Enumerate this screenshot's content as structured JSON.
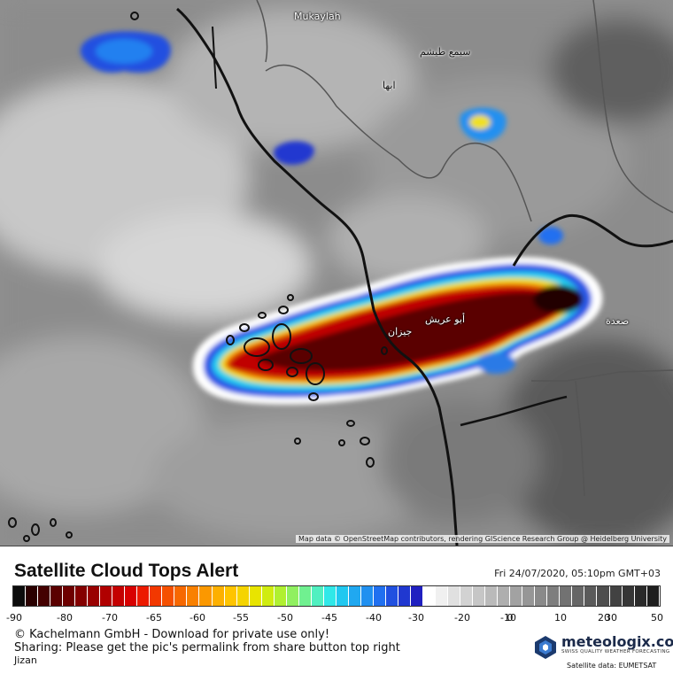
{
  "map": {
    "places": [
      {
        "name": "Mukaylah"
      },
      {
        "name": "سيمع طيشم"
      },
      {
        "name": "ابها"
      },
      {
        "name": "أبو عريش"
      },
      {
        "name": "جيزان"
      },
      {
        "name": "صعدة"
      }
    ],
    "attribution": "Map data © OpenStreetMap contributors, rendering GIScience Research Group @ Heidelberg University"
  },
  "legend": {
    "title": "Satellite Cloud Tops Alert",
    "timestamp": "Fri 24/07/2020, 05:10pm GMT+03",
    "ticks": [
      "-90",
      "-80",
      "-70",
      "-65",
      "-60",
      "-55",
      "-50",
      "-45",
      "-40",
      "-30",
      "-20",
      "-10",
      "0",
      "10",
      "20",
      "30",
      "50"
    ],
    "colors": [
      "#0c0c0c",
      "#2a0000",
      "#440000",
      "#5a0000",
      "#6e0000",
      "#840000",
      "#990000",
      "#b00000",
      "#c40000",
      "#d80000",
      "#ec1a00",
      "#f23800",
      "#f55000",
      "#f76800",
      "#f98000",
      "#fb9800",
      "#fdb000",
      "#ffc400",
      "#f5d400",
      "#e8e400",
      "#d0ec10",
      "#b0f030",
      "#90f060",
      "#70f090",
      "#50f0c0",
      "#30e8e8",
      "#20c8f0",
      "#20a8f0",
      "#2090f0",
      "#2070f0",
      "#2050e0",
      "#2038d0",
      "#2020c0",
      "#ffffff",
      "#f0f0f0",
      "#e0e0e0",
      "#d2d2d2",
      "#c6c6c6",
      "#bababa",
      "#aeaeae",
      "#a2a2a2",
      "#969696",
      "#8a8a8a",
      "#7e7e7e",
      "#727272",
      "#666666",
      "#5a5a5a",
      "#4e4e4e",
      "#424242",
      "#363636",
      "#2a2a2a",
      "#1e1e1e"
    ]
  },
  "footer": {
    "copyright": "© Kachelmann GmbH - Download for private use only!",
    "sharing": "Sharing: Please get the pic's permalink from share button top right",
    "location": "Jizan",
    "brand": "meteologix.com",
    "tagline": "SWISS QUALITY WEATHER FORECASTING",
    "satellite_source": "Satellite data: EUMETSAT"
  }
}
